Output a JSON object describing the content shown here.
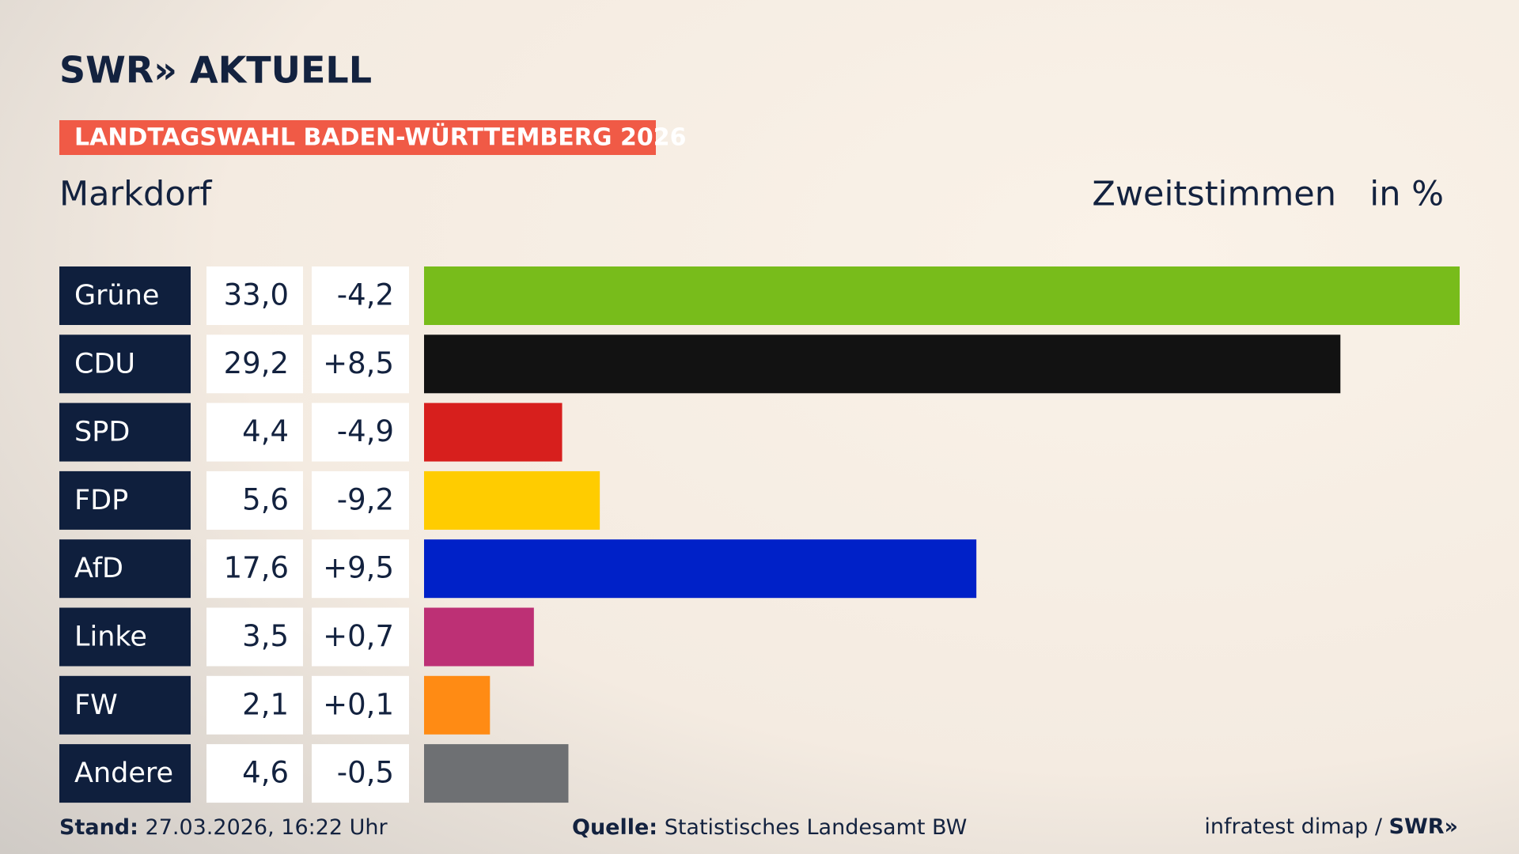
{
  "header": {
    "logo": "SWR» AKTUELL",
    "tag": "LANDTAGSWAHL BADEN-WÜRTTEMBERG 2026"
  },
  "chart_data": {
    "type": "bar",
    "orientation": "horizontal",
    "title": "Markdorf",
    "subtitle": "Zweitstimmen",
    "unit_label": "in %",
    "categories": [
      "Grüne",
      "CDU",
      "SPD",
      "FDP",
      "AfD",
      "Linke",
      "FW",
      "Andere"
    ],
    "values": [
      33.0,
      29.2,
      4.4,
      5.6,
      17.6,
      3.5,
      2.1,
      4.6
    ],
    "value_labels": [
      "33,0",
      "29,2",
      "4,4",
      "5,6",
      "17,6",
      "3,5",
      "2,1",
      "4,6"
    ],
    "changes": [
      "-4,2",
      "+8,5",
      "-4,9",
      "-9,2",
      "+9,5",
      "+0,7",
      "+0,1",
      "-0,5"
    ],
    "colors": [
      "#78bc1b",
      "#121212",
      "#d71f1d",
      "#ffcc00",
      "#0021c8",
      "#bd3075",
      "#ff8b14",
      "#6e7073"
    ]
  },
  "footer": {
    "stand_label": "Stand:",
    "stand": "27.03.2026, 16:22 Uhr",
    "source_label": "Quelle:",
    "source": "Statistisches Landesamt BW",
    "credit": "infratest dimap /",
    "credit_logo": "SWR»"
  }
}
